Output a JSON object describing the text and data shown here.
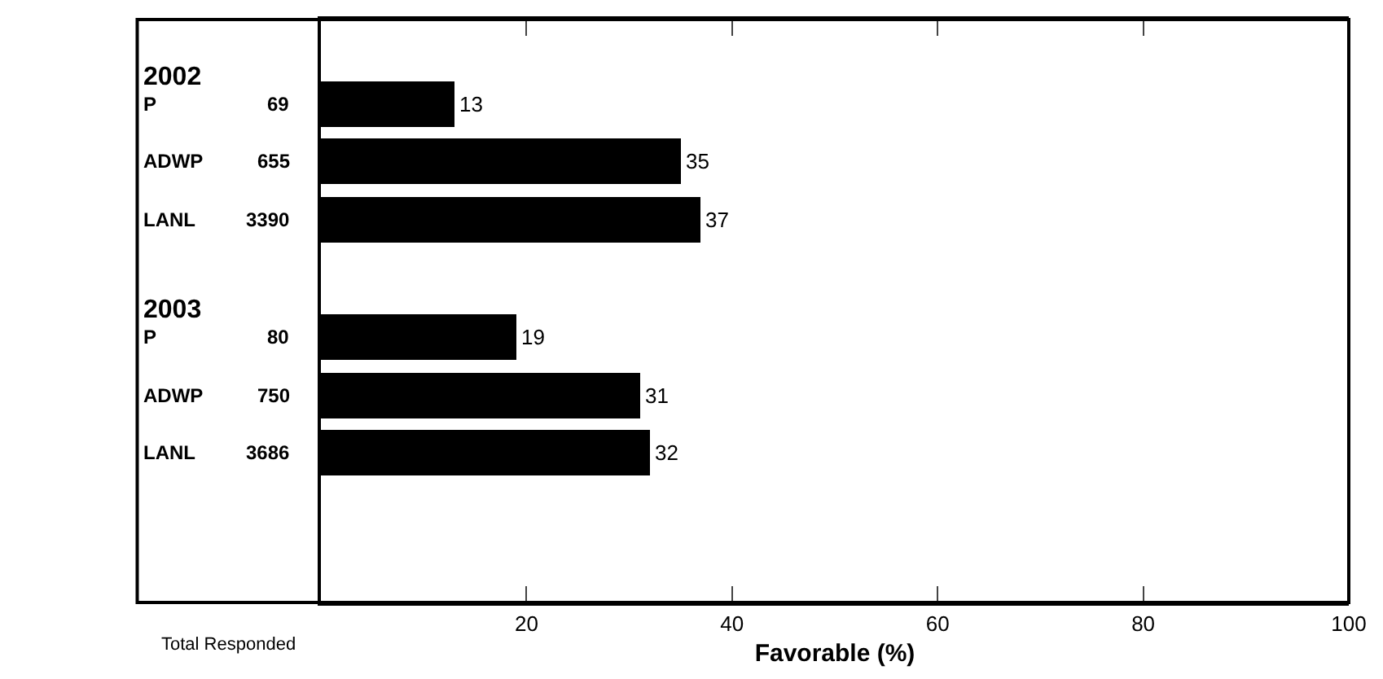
{
  "chart_data": {
    "type": "bar",
    "orientation": "horizontal",
    "xlabel": "Favorable (%)",
    "categories": [
      "P",
      "ADWP",
      "LANL",
      "P",
      "ADWP",
      "LANL"
    ],
    "values": [
      13,
      35,
      37,
      19,
      31,
      32
    ],
    "color": "#000000",
    "data_labels": true,
    "xlim": [
      0,
      100
    ],
    "xticks": [
      {
        "value": 0,
        "label": null
      },
      20,
      40,
      60,
      80,
      100
    ],
    "annotations": [
      "2002",
      "2003",
      "69",
      "655",
      "3390",
      "80",
      "750",
      "3686",
      "Total Responded"
    ],
    "legend": false
  }
}
